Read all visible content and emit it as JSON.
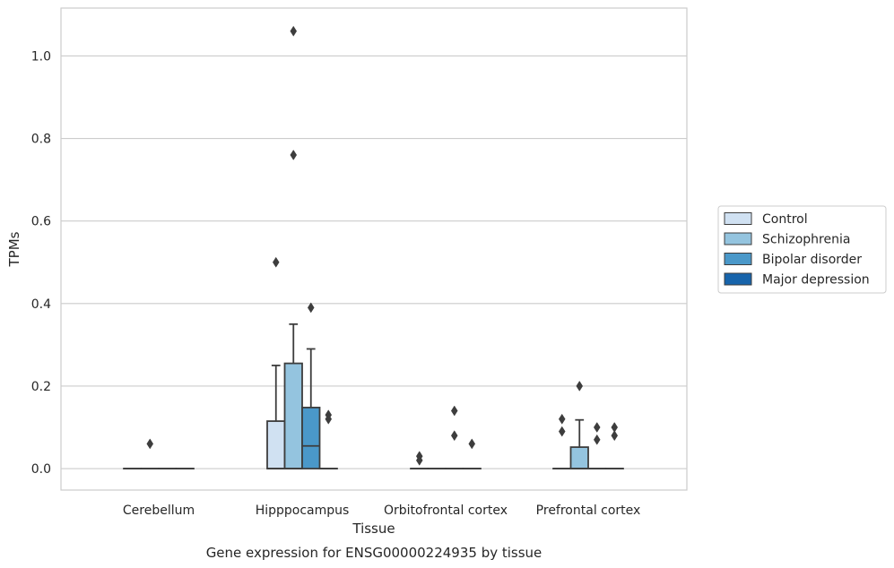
{
  "chart_data": {
    "type": "box",
    "title": "",
    "caption": "Gene expression for ENSG00000224935 by tissue",
    "xlabel": "Tissue",
    "ylabel": "TPMs",
    "ylim": [
      -0.052,
      1.116
    ],
    "yticks": [
      0.0,
      0.2,
      0.4,
      0.6,
      0.8,
      1.0
    ],
    "ytick_labels": [
      "0.0",
      "0.2",
      "0.4",
      "0.6",
      "0.8",
      "1.0"
    ],
    "grid": "horizontal",
    "legend_position": "right",
    "categories": [
      "Cerebellum",
      "Hipppocampus",
      "Orbitofrontal cortex",
      "Prefrontal cortex"
    ],
    "series": [
      {
        "name": "Control",
        "color": "#d0e1f2",
        "boxes": [
          {
            "q1": 0,
            "median": 0,
            "q3": 0,
            "whisker_low": 0,
            "whisker_high": 0,
            "outliers": []
          },
          {
            "q1": 0,
            "median": 0,
            "q3": 0.115,
            "whisker_low": 0,
            "whisker_high": 0.25,
            "outliers": [
              0.5
            ]
          },
          {
            "q1": 0,
            "median": 0,
            "q3": 0,
            "whisker_low": 0,
            "whisker_high": 0,
            "outliers": [
              0.03,
              0.02
            ]
          },
          {
            "q1": 0,
            "median": 0,
            "q3": 0,
            "whisker_low": 0,
            "whisker_high": 0,
            "outliers": [
              0.12,
              0.09
            ]
          }
        ]
      },
      {
        "name": "Schizophrenia",
        "color": "#94c4df",
        "boxes": [
          {
            "q1": 0,
            "median": 0,
            "q3": 0,
            "whisker_low": 0,
            "whisker_high": 0,
            "outliers": [
              0.06
            ]
          },
          {
            "q1": 0,
            "median": 0,
            "q3": 0.255,
            "whisker_low": 0,
            "whisker_high": 0.35,
            "outliers": [
              1.06,
              0.76
            ]
          },
          {
            "q1": 0,
            "median": 0,
            "q3": 0,
            "whisker_low": 0,
            "whisker_high": 0,
            "outliers": []
          },
          {
            "q1": 0,
            "median": 0,
            "q3": 0.052,
            "whisker_low": 0,
            "whisker_high": 0.118,
            "outliers": [
              0.2
            ]
          }
        ]
      },
      {
        "name": "Bipolar disorder",
        "color": "#4a98c9",
        "boxes": [
          {
            "q1": 0,
            "median": 0,
            "q3": 0,
            "whisker_low": 0,
            "whisker_high": 0,
            "outliers": []
          },
          {
            "q1": 0,
            "median": 0.055,
            "q3": 0.148,
            "whisker_low": 0,
            "whisker_high": 0.29,
            "outliers": [
              0.39
            ]
          },
          {
            "q1": 0,
            "median": 0,
            "q3": 0,
            "whisker_low": 0,
            "whisker_high": 0,
            "outliers": [
              0.14,
              0.08
            ]
          },
          {
            "q1": 0,
            "median": 0,
            "q3": 0,
            "whisker_low": 0,
            "whisker_high": 0,
            "outliers": [
              0.1,
              0.07
            ]
          }
        ]
      },
      {
        "name": "Major depression",
        "color": "#1764ab",
        "boxes": [
          {
            "q1": 0,
            "median": 0,
            "q3": 0,
            "whisker_low": 0,
            "whisker_high": 0,
            "outliers": []
          },
          {
            "q1": 0,
            "median": 0,
            "q3": 0,
            "whisker_low": 0,
            "whisker_high": 0,
            "outliers": [
              0.13,
              0.12
            ]
          },
          {
            "q1": 0,
            "median": 0,
            "q3": 0,
            "whisker_low": 0,
            "whisker_high": 0,
            "outliers": [
              0.06
            ]
          },
          {
            "q1": 0,
            "median": 0,
            "q3": 0,
            "whisker_low": 0,
            "whisker_high": 0,
            "outliers": [
              0.1,
              0.08
            ]
          }
        ]
      }
    ]
  }
}
